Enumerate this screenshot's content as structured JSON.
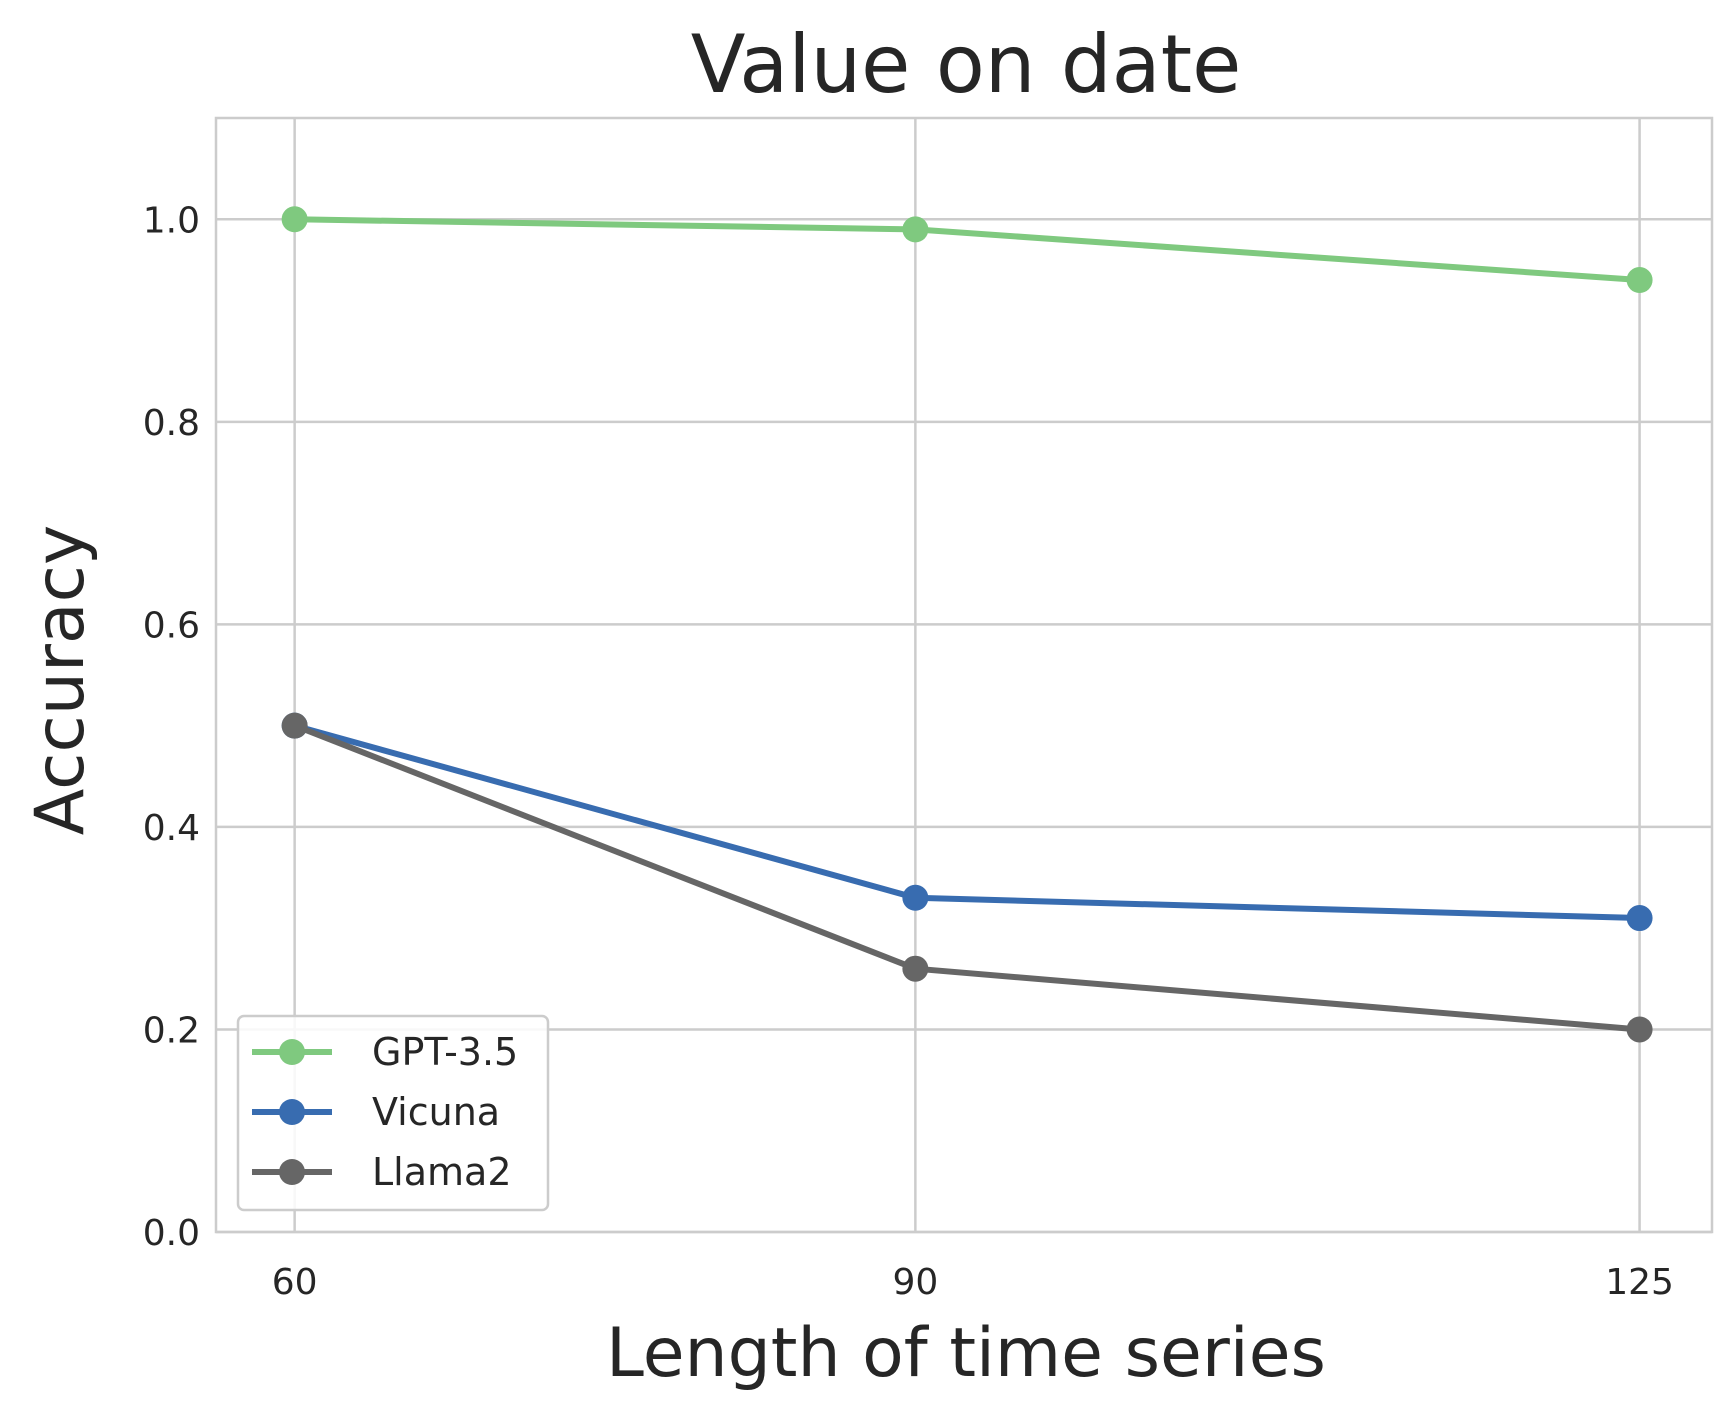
{
  "chart_data": {
    "type": "line",
    "title": "Value on date",
    "xlabel": "Length of time series",
    "ylabel": "Accuracy",
    "categories": [
      "60",
      "90",
      "125"
    ],
    "x": [
      60,
      90,
      125
    ],
    "xlim": [
      56.2,
      128.5
    ],
    "ylim": [
      0.0,
      1.1
    ],
    "yticks": [
      0.0,
      0.2,
      0.4,
      0.6,
      0.8,
      1.0
    ],
    "ytick_labels": [
      "0.0",
      "0.2",
      "0.4",
      "0.6",
      "0.8",
      "1.0"
    ],
    "grid": true,
    "legend_position": "lower-left",
    "series": [
      {
        "name": "GPT-3.5",
        "color": "#7fc97f",
        "values": [
          1.0,
          0.99,
          0.94
        ]
      },
      {
        "name": "Vicuna",
        "color": "#386cb0",
        "values": [
          0.5,
          0.33,
          0.31
        ]
      },
      {
        "name": "Llama2",
        "color": "#666666",
        "values": [
          0.5,
          0.26,
          0.2
        ]
      }
    ]
  }
}
